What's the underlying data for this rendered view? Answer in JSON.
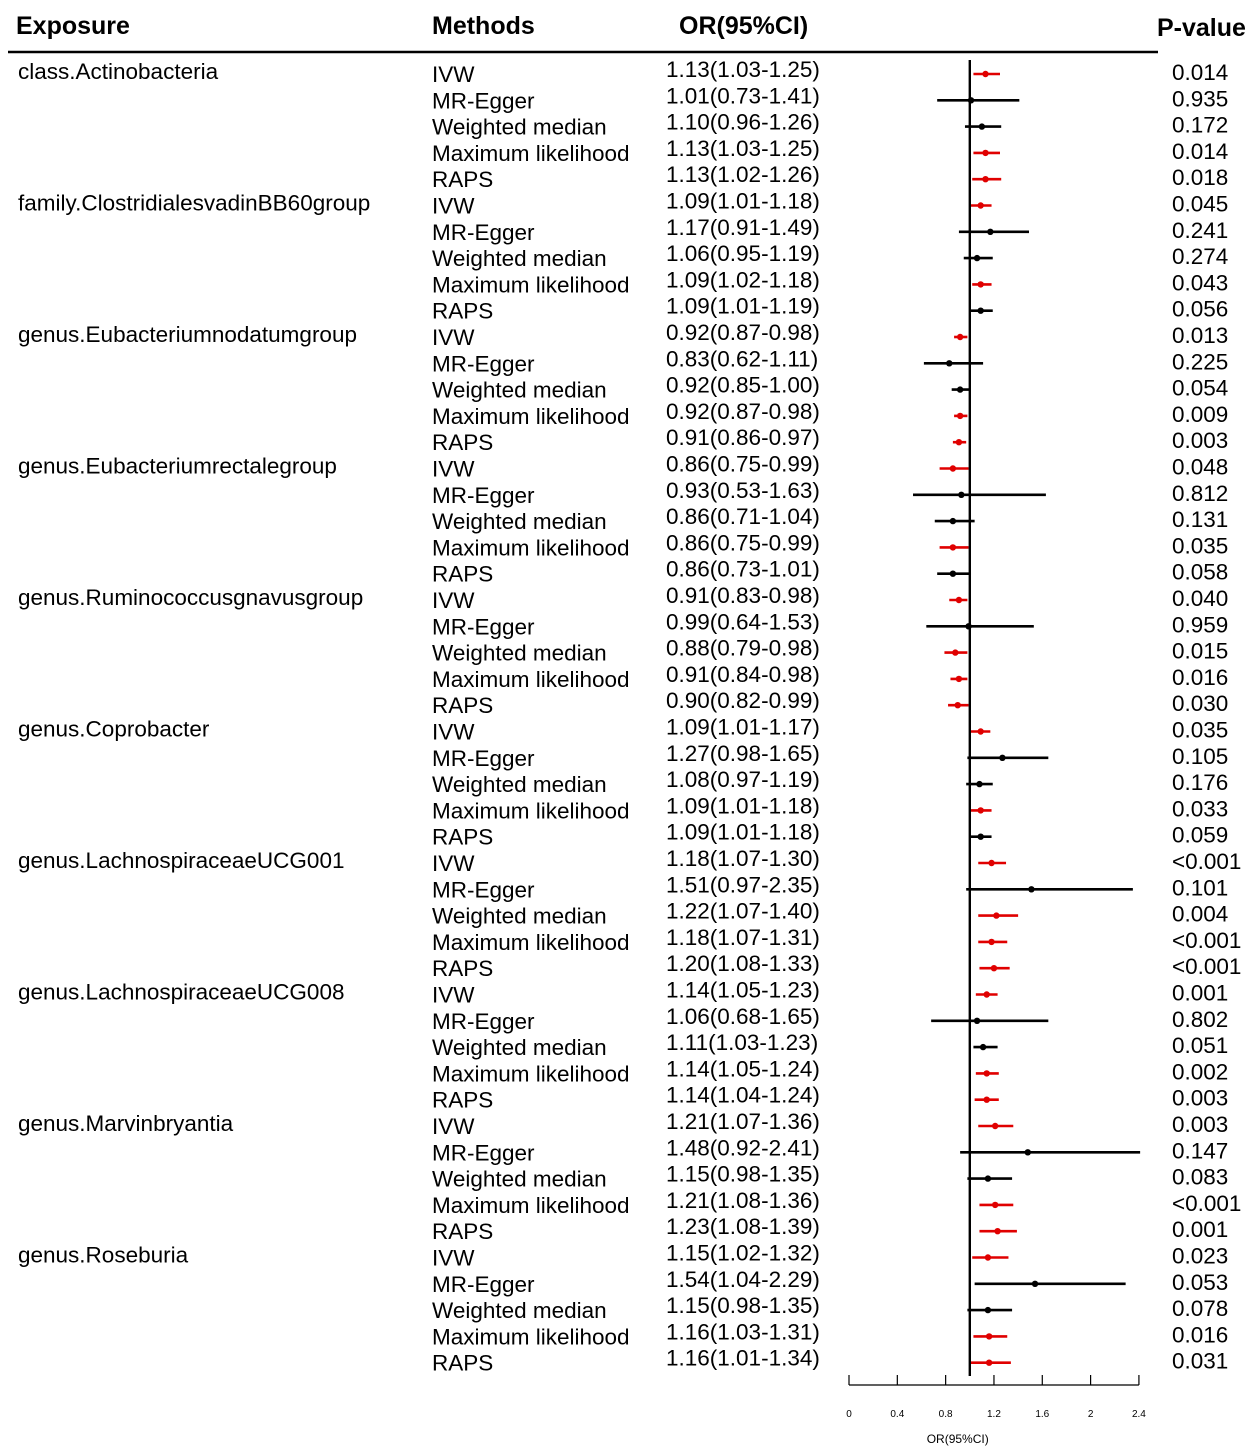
{
  "headers": {
    "exposure": "Exposure",
    "methods": "Methods",
    "or_ci": "OR(95%CI)",
    "pvalue": "P-value"
  },
  "colors": {
    "significant": "#e00000",
    "nonsignificant": "#000000"
  },
  "chart_data": {
    "type": "forest",
    "xlabel": "OR(95%CI)",
    "xlim": [
      0,
      2.4
    ],
    "xticks": [
      0,
      0.4,
      0.8,
      1.2,
      1.6,
      2,
      2.4
    ],
    "xtick_labels": [
      "0",
      "0.4",
      "0.8",
      "1.2",
      "1.6",
      "2",
      "2.4"
    ],
    "reference_line": 1,
    "groups": [
      {
        "exposure": "class.Actinobacteria",
        "rows": [
          {
            "method": "IVW",
            "or": 1.13,
            "lo": 1.03,
            "hi": 1.25,
            "label": "1.13(1.03-1.25)",
            "p": "0.014",
            "significant": true
          },
          {
            "method": "MR-Egger",
            "or": 1.01,
            "lo": 0.73,
            "hi": 1.41,
            "label": "1.01(0.73-1.41)",
            "p": "0.935",
            "significant": false
          },
          {
            "method": "Weighted median",
            "or": 1.1,
            "lo": 0.96,
            "hi": 1.26,
            "label": "1.10(0.96-1.26)",
            "p": "0.172",
            "significant": false
          },
          {
            "method": "Maximum likelihood",
            "or": 1.13,
            "lo": 1.03,
            "hi": 1.25,
            "label": "1.13(1.03-1.25)",
            "p": "0.014",
            "significant": true
          },
          {
            "method": "RAPS",
            "or": 1.13,
            "lo": 1.02,
            "hi": 1.26,
            "label": "1.13(1.02-1.26)",
            "p": "0.018",
            "significant": true
          }
        ]
      },
      {
        "exposure": "family.ClostridialesvadinBB60group",
        "rows": [
          {
            "method": "IVW",
            "or": 1.09,
            "lo": 1.01,
            "hi": 1.18,
            "label": "1.09(1.01-1.18)",
            "p": "0.045",
            "significant": true
          },
          {
            "method": "MR-Egger",
            "or": 1.17,
            "lo": 0.91,
            "hi": 1.49,
            "label": "1.17(0.91-1.49)",
            "p": "0.241",
            "significant": false
          },
          {
            "method": "Weighted median",
            "or": 1.06,
            "lo": 0.95,
            "hi": 1.19,
            "label": "1.06(0.95-1.19)",
            "p": "0.274",
            "significant": false
          },
          {
            "method": "Maximum likelihood",
            "or": 1.09,
            "lo": 1.02,
            "hi": 1.18,
            "label": "1.09(1.02-1.18)",
            "p": "0.043",
            "significant": true
          },
          {
            "method": "RAPS",
            "or": 1.09,
            "lo": 1.01,
            "hi": 1.19,
            "label": "1.09(1.01-1.19)",
            "p": "0.056",
            "significant": false
          }
        ]
      },
      {
        "exposure": "genus.Eubacteriumnodatumgroup",
        "rows": [
          {
            "method": "IVW",
            "or": 0.92,
            "lo": 0.87,
            "hi": 0.98,
            "label": "0.92(0.87-0.98)",
            "p": "0.013",
            "significant": true
          },
          {
            "method": "MR-Egger",
            "or": 0.83,
            "lo": 0.62,
            "hi": 1.11,
            "label": "0.83(0.62-1.11)",
            "p": "0.225",
            "significant": false
          },
          {
            "method": "Weighted median",
            "or": 0.92,
            "lo": 0.85,
            "hi": 1.0,
            "label": "0.92(0.85-1.00)",
            "p": "0.054",
            "significant": false
          },
          {
            "method": "Maximum likelihood",
            "or": 0.92,
            "lo": 0.87,
            "hi": 0.98,
            "label": "0.92(0.87-0.98)",
            "p": "0.009",
            "significant": true
          },
          {
            "method": "RAPS",
            "or": 0.91,
            "lo": 0.86,
            "hi": 0.97,
            "label": "0.91(0.86-0.97)",
            "p": "0.003",
            "significant": true
          }
        ]
      },
      {
        "exposure": "genus.Eubacteriumrectalegroup",
        "rows": [
          {
            "method": "IVW",
            "or": 0.86,
            "lo": 0.75,
            "hi": 0.99,
            "label": "0.86(0.75-0.99)",
            "p": "0.048",
            "significant": true
          },
          {
            "method": "MR-Egger",
            "or": 0.93,
            "lo": 0.53,
            "hi": 1.63,
            "label": "0.93(0.53-1.63)",
            "p": "0.812",
            "significant": false
          },
          {
            "method": "Weighted median",
            "or": 0.86,
            "lo": 0.71,
            "hi": 1.04,
            "label": "0.86(0.71-1.04)",
            "p": "0.131",
            "significant": false
          },
          {
            "method": "Maximum likelihood",
            "or": 0.86,
            "lo": 0.75,
            "hi": 0.99,
            "label": "0.86(0.75-0.99)",
            "p": "0.035",
            "significant": true
          },
          {
            "method": "RAPS",
            "or": 0.86,
            "lo": 0.73,
            "hi": 1.01,
            "label": "0.86(0.73-1.01)",
            "p": "0.058",
            "significant": false
          }
        ]
      },
      {
        "exposure": "genus.Ruminococcusgnavusgroup",
        "rows": [
          {
            "method": "IVW",
            "or": 0.91,
            "lo": 0.83,
            "hi": 0.98,
            "label": "0.91(0.83-0.98)",
            "p": "0.040",
            "significant": true
          },
          {
            "method": "MR-Egger",
            "or": 0.99,
            "lo": 0.64,
            "hi": 1.53,
            "label": "0.99(0.64-1.53)",
            "p": "0.959",
            "significant": false
          },
          {
            "method": "Weighted median",
            "or": 0.88,
            "lo": 0.79,
            "hi": 0.98,
            "label": "0.88(0.79-0.98)",
            "p": "0.015",
            "significant": true
          },
          {
            "method": "Maximum likelihood",
            "or": 0.91,
            "lo": 0.84,
            "hi": 0.98,
            "label": "0.91(0.84-0.98)",
            "p": "0.016",
            "significant": true
          },
          {
            "method": "RAPS",
            "or": 0.9,
            "lo": 0.82,
            "hi": 0.99,
            "label": "0.90(0.82-0.99)",
            "p": "0.030",
            "significant": true
          }
        ]
      },
      {
        "exposure": "genus.Coprobacter",
        "rows": [
          {
            "method": "IVW",
            "or": 1.09,
            "lo": 1.01,
            "hi": 1.17,
            "label": "1.09(1.01-1.17)",
            "p": "0.035",
            "significant": true
          },
          {
            "method": "MR-Egger",
            "or": 1.27,
            "lo": 0.98,
            "hi": 1.65,
            "label": "1.27(0.98-1.65)",
            "p": "0.105",
            "significant": false
          },
          {
            "method": "Weighted median",
            "or": 1.08,
            "lo": 0.97,
            "hi": 1.19,
            "label": "1.08(0.97-1.19)",
            "p": "0.176",
            "significant": false
          },
          {
            "method": "Maximum likelihood",
            "or": 1.09,
            "lo": 1.01,
            "hi": 1.18,
            "label": "1.09(1.01-1.18)",
            "p": "0.033",
            "significant": true
          },
          {
            "method": "RAPS",
            "or": 1.09,
            "lo": 1.01,
            "hi": 1.18,
            "label": "1.09(1.01-1.18)",
            "p": "0.059",
            "significant": false
          }
        ]
      },
      {
        "exposure": "genus.LachnospiraceaeUCG001",
        "rows": [
          {
            "method": "IVW",
            "or": 1.18,
            "lo": 1.07,
            "hi": 1.3,
            "label": "1.18(1.07-1.30)",
            "p": "<0.001",
            "significant": true
          },
          {
            "method": "MR-Egger",
            "or": 1.51,
            "lo": 0.97,
            "hi": 2.35,
            "label": "1.51(0.97-2.35)",
            "p": "0.101",
            "significant": false
          },
          {
            "method": "Weighted median",
            "or": 1.22,
            "lo": 1.07,
            "hi": 1.4,
            "label": "1.22(1.07-1.40)",
            "p": "0.004",
            "significant": true
          },
          {
            "method": "Maximum likelihood",
            "or": 1.18,
            "lo": 1.07,
            "hi": 1.31,
            "label": "1.18(1.07-1.31)",
            "p": "<0.001",
            "significant": true
          },
          {
            "method": "RAPS",
            "or": 1.2,
            "lo": 1.08,
            "hi": 1.33,
            "label": "1.20(1.08-1.33)",
            "p": "<0.001",
            "significant": true
          }
        ]
      },
      {
        "exposure": "genus.LachnospiraceaeUCG008",
        "rows": [
          {
            "method": "IVW",
            "or": 1.14,
            "lo": 1.05,
            "hi": 1.23,
            "label": "1.14(1.05-1.23)",
            "p": "0.001",
            "significant": true
          },
          {
            "method": "MR-Egger",
            "or": 1.06,
            "lo": 0.68,
            "hi": 1.65,
            "label": "1.06(0.68-1.65)",
            "p": "0.802",
            "significant": false
          },
          {
            "method": "Weighted median",
            "or": 1.11,
            "lo": 1.03,
            "hi": 1.23,
            "label": "1.11(1.03-1.23)",
            "p": "0.051",
            "significant": false
          },
          {
            "method": "Maximum likelihood",
            "or": 1.14,
            "lo": 1.05,
            "hi": 1.24,
            "label": "1.14(1.05-1.24)",
            "p": "0.002",
            "significant": true
          },
          {
            "method": "RAPS",
            "or": 1.14,
            "lo": 1.04,
            "hi": 1.24,
            "label": "1.14(1.04-1.24)",
            "p": "0.003",
            "significant": true
          }
        ]
      },
      {
        "exposure": "genus.Marvinbryantia",
        "rows": [
          {
            "method": "IVW",
            "or": 1.21,
            "lo": 1.07,
            "hi": 1.36,
            "label": "1.21(1.07-1.36)",
            "p": "0.003",
            "significant": true
          },
          {
            "method": "MR-Egger",
            "or": 1.48,
            "lo": 0.92,
            "hi": 2.41,
            "label": "1.48(0.92-2.41)",
            "p": "0.147",
            "significant": false
          },
          {
            "method": "Weighted median",
            "or": 1.15,
            "lo": 0.98,
            "hi": 1.35,
            "label": "1.15(0.98-1.35)",
            "p": "0.083",
            "significant": false
          },
          {
            "method": "Maximum likelihood",
            "or": 1.21,
            "lo": 1.08,
            "hi": 1.36,
            "label": "1.21(1.08-1.36)",
            "p": "<0.001",
            "significant": true
          },
          {
            "method": "RAPS",
            "or": 1.23,
            "lo": 1.08,
            "hi": 1.39,
            "label": "1.23(1.08-1.39)",
            "p": "0.001",
            "significant": true
          }
        ]
      },
      {
        "exposure": "genus.Roseburia",
        "rows": [
          {
            "method": "IVW",
            "or": 1.15,
            "lo": 1.02,
            "hi": 1.32,
            "label": "1.15(1.02-1.32)",
            "p": "0.023",
            "significant": true
          },
          {
            "method": "MR-Egger",
            "or": 1.54,
            "lo": 1.04,
            "hi": 2.29,
            "label": "1.54(1.04-2.29)",
            "p": "0.053",
            "significant": false
          },
          {
            "method": "Weighted median",
            "or": 1.15,
            "lo": 0.98,
            "hi": 1.35,
            "label": "1.15(0.98-1.35)",
            "p": "0.078",
            "significant": false
          },
          {
            "method": "Maximum likelihood",
            "or": 1.16,
            "lo": 1.03,
            "hi": 1.31,
            "label": "1.16(1.03-1.31)",
            "p": "0.016",
            "significant": true
          },
          {
            "method": "RAPS",
            "or": 1.16,
            "lo": 1.01,
            "hi": 1.34,
            "label": "1.16(1.01-1.34)",
            "p": "0.031",
            "significant": true
          }
        ]
      }
    ]
  }
}
